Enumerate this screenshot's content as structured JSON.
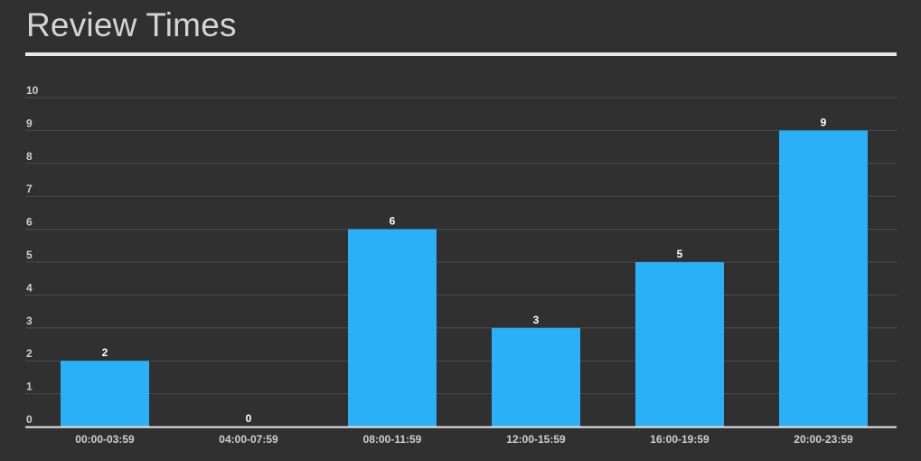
{
  "header": {
    "title": "Review Times"
  },
  "colors": {
    "background": "#303030",
    "bar": "#29b0f7",
    "grid": "#4c4c4c",
    "axis": "#e8e8e8",
    "tick_text": "#cfcfcf",
    "value_text": "#ffffff"
  },
  "chart_data": {
    "type": "bar",
    "title": "Review Times",
    "xlabel": "",
    "ylabel": "",
    "categories": [
      "00:00-03:59",
      "04:00-07:59",
      "08:00-11:59",
      "12:00-15:59",
      "16:00-19:59",
      "20:00-23:59"
    ],
    "values": [
      2,
      0,
      6,
      3,
      5,
      9
    ],
    "value_labels": [
      "2",
      "0",
      "6",
      "3",
      "5",
      "9"
    ],
    "ylim": [
      0,
      10
    ],
    "yticks": [
      "0",
      "1",
      "2",
      "3",
      "4",
      "5",
      "6",
      "7",
      "8",
      "9",
      "10"
    ],
    "grid": true,
    "legend": "none"
  }
}
